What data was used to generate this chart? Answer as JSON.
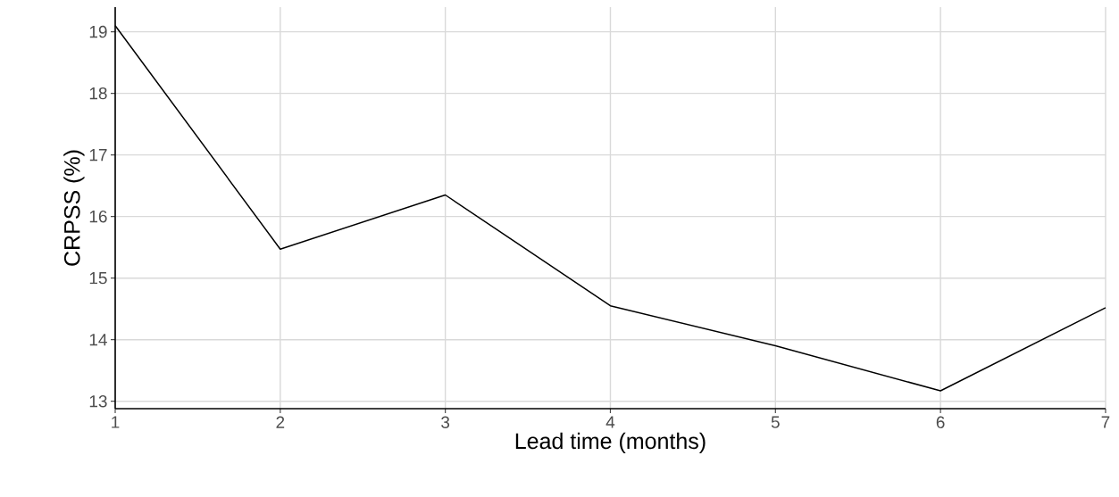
{
  "chart_data": {
    "type": "line",
    "xlabel": "Lead time (months)",
    "ylabel": "CRPSS (%)",
    "x": [
      1,
      2,
      3,
      4,
      5,
      6,
      7
    ],
    "series": [
      {
        "color": "#000000",
        "values": [
          19.1,
          15.47,
          16.35,
          14.55,
          13.9,
          13.17,
          14.52
        ]
      }
    ],
    "xlim": [
      1,
      7
    ],
    "ylim": [
      12.88,
      19.4
    ],
    "xticks": [
      1,
      2,
      3,
      4,
      5,
      6,
      7
    ],
    "yticks": [
      13,
      14,
      15,
      16,
      17,
      18,
      19
    ],
    "grid": true,
    "marker": "none",
    "line_style": "solid"
  }
}
